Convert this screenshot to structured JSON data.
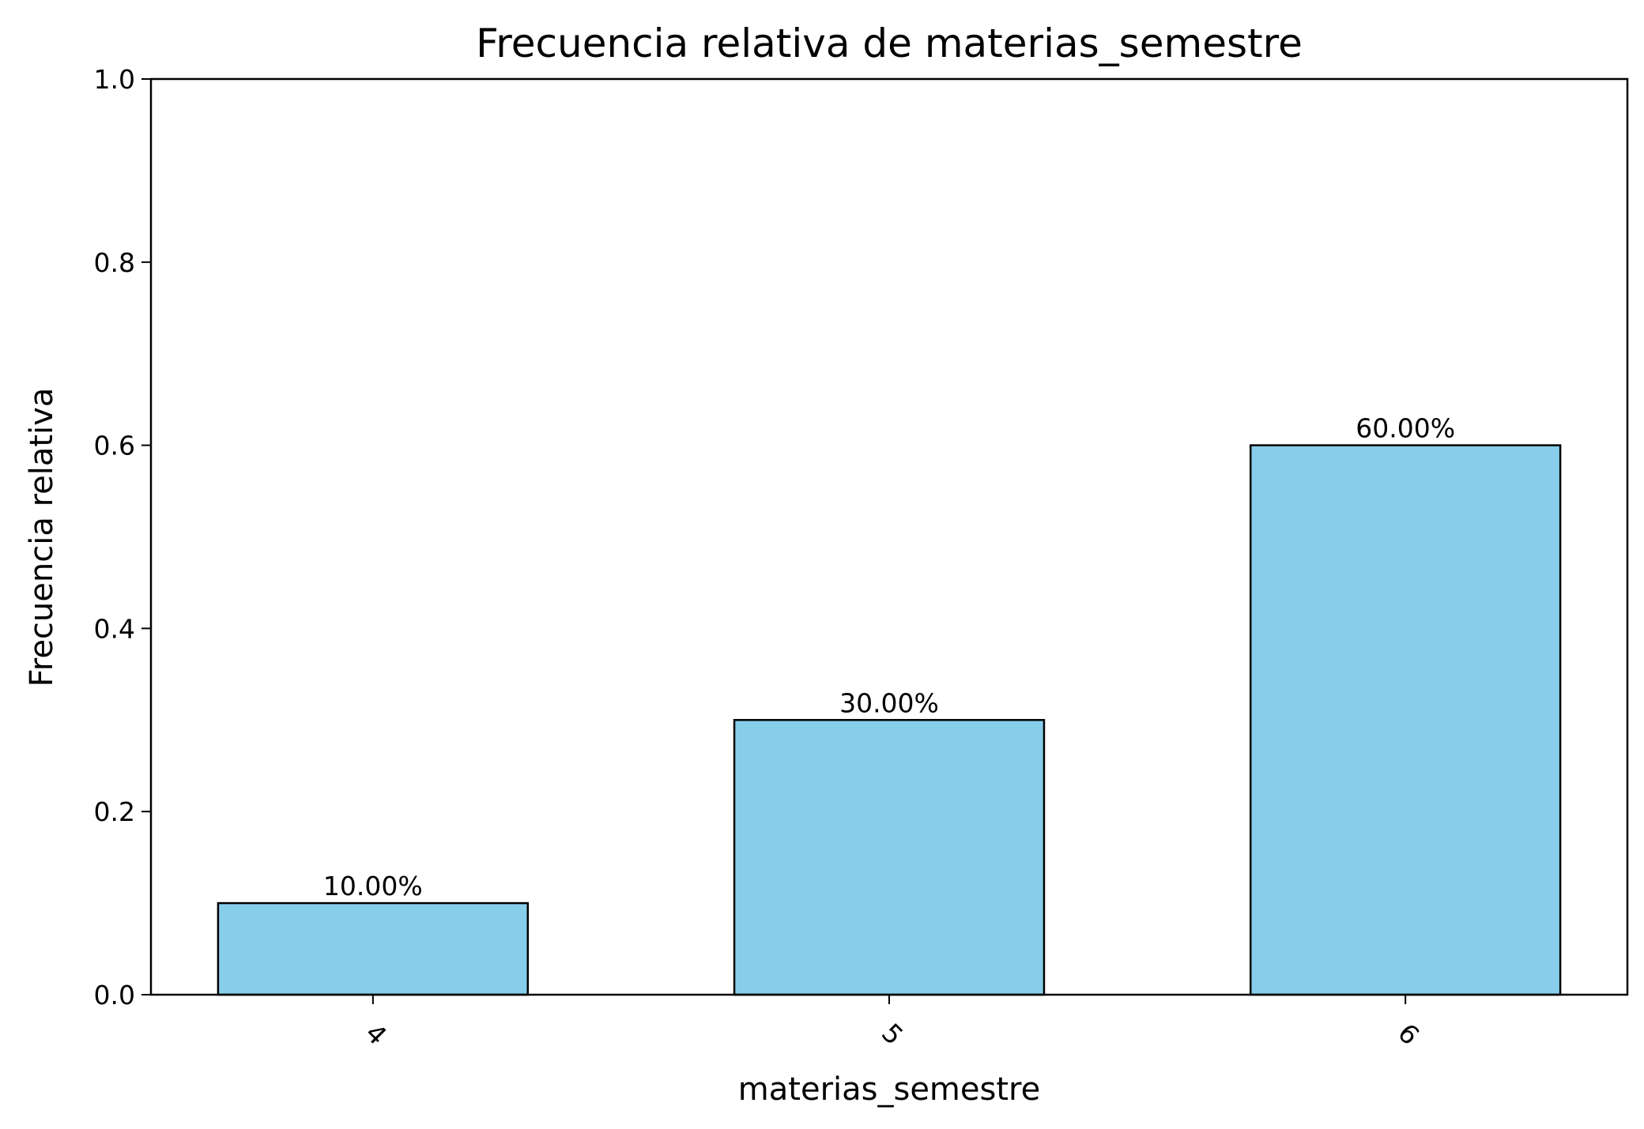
{
  "chart_data": {
    "type": "bar",
    "title": "Frecuencia relativa de materias_semestre",
    "xlabel": "materias_semestre",
    "ylabel": "Frecuencia relativa",
    "categories": [
      "4",
      "5",
      "6"
    ],
    "values": [
      0.1,
      0.3,
      0.6
    ],
    "data_labels": [
      "10.00%",
      "30.00%",
      "60.00%"
    ],
    "ylim": [
      0,
      1
    ],
    "yticks": [
      0.0,
      0.2,
      0.4,
      0.6,
      0.8,
      1.0
    ],
    "ytick_labels": [
      "0.0",
      "0.2",
      "0.4",
      "0.6",
      "0.8",
      "1.0"
    ],
    "xtick_rotation": 45,
    "bar_color": "#87CEEB",
    "bar_edge_color": "#000000",
    "grid": false,
    "legend": "none"
  }
}
